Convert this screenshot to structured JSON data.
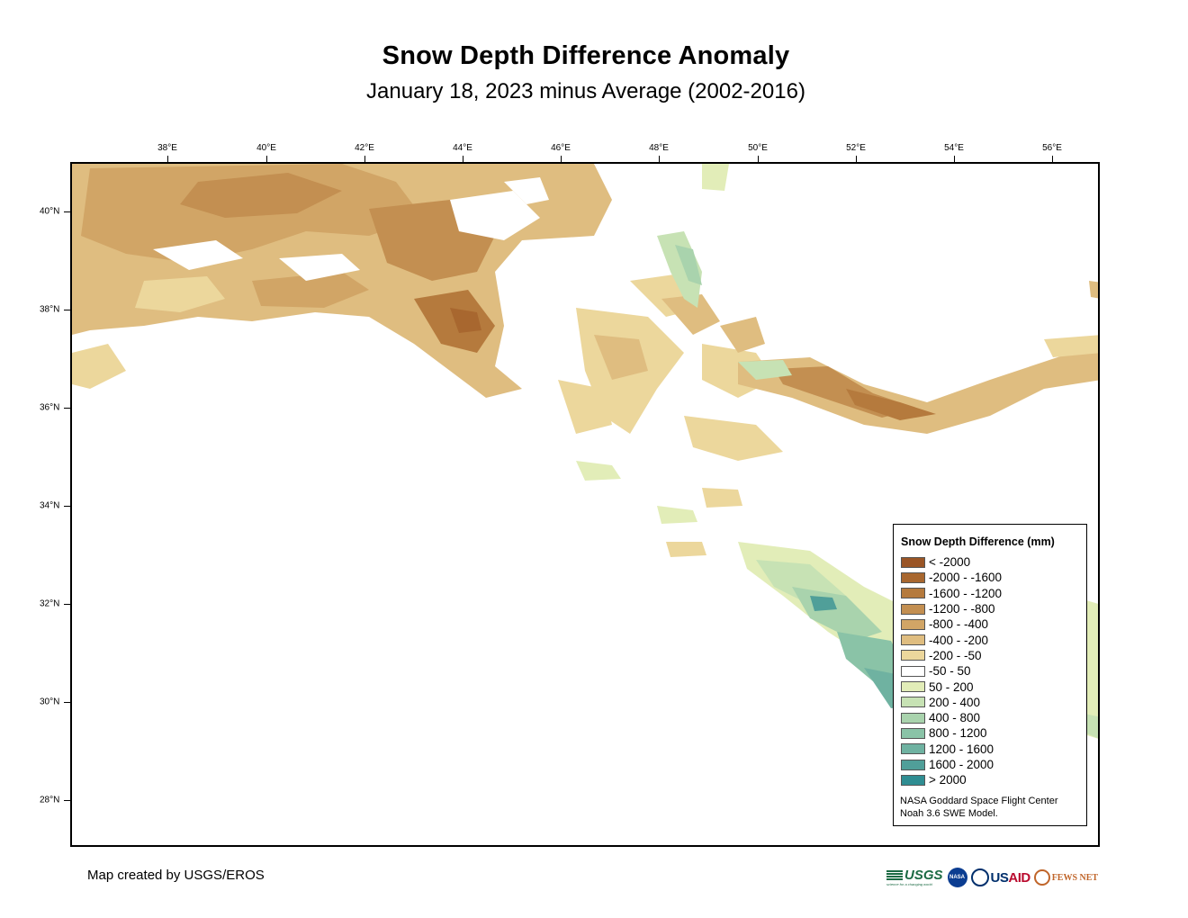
{
  "title": "Snow Depth Difference Anomaly",
  "subtitle": "January 18, 2023 minus Average (2002-2016)",
  "longitude_labels": [
    "38°E",
    "40°E",
    "42°E",
    "44°E",
    "46°E",
    "48°E",
    "50°E",
    "52°E",
    "54°E",
    "56°E"
  ],
  "latitude_labels": [
    "40°N",
    "38°N",
    "36°N",
    "34°N",
    "32°N",
    "30°N",
    "28°N"
  ],
  "legend": {
    "title": "Snow Depth Difference (mm)",
    "items": [
      {
        "label": "< -2000",
        "color": "#9a5526"
      },
      {
        "label": "-2000 - -1600",
        "color": "#a8672f"
      },
      {
        "label": "-1600 - -1200",
        "color": "#b57a3d"
      },
      {
        "label": "-1200 - -800",
        "color": "#c38f51"
      },
      {
        "label": "-800 - -400",
        "color": "#d1a566"
      },
      {
        "label": "-400 - -200",
        "color": "#dfbd80"
      },
      {
        "label": "-200 - -50",
        "color": "#ecd79c"
      },
      {
        "label": "-50 - 50",
        "color": "#ffffff"
      },
      {
        "label": "50 - 200",
        "color": "#e2edb8"
      },
      {
        "label": "200 - 400",
        "color": "#c7e2b4"
      },
      {
        "label": "400 - 800",
        "color": "#a9d3ad"
      },
      {
        "label": "800 - 1200",
        "color": "#8ac3a7"
      },
      {
        "label": "1200 - 1600",
        "color": "#6fb2a1"
      },
      {
        "label": "1600 - 2000",
        "color": "#509f99"
      },
      {
        "label": "> 2000",
        "color": "#2f8d92"
      }
    ],
    "credit_line1": "NASA Goddard Space Flight Center",
    "credit_line2": "Noah 3.6 SWE Model."
  },
  "map_credit": "Map created by USGS/EROS",
  "logos": {
    "usgs": "USGS",
    "usgs_tagline": "science for a changing world",
    "nasa": "NASA",
    "usaid_prefix": "US",
    "usaid_suffix": "AID",
    "fews": "FEWS NET"
  }
}
